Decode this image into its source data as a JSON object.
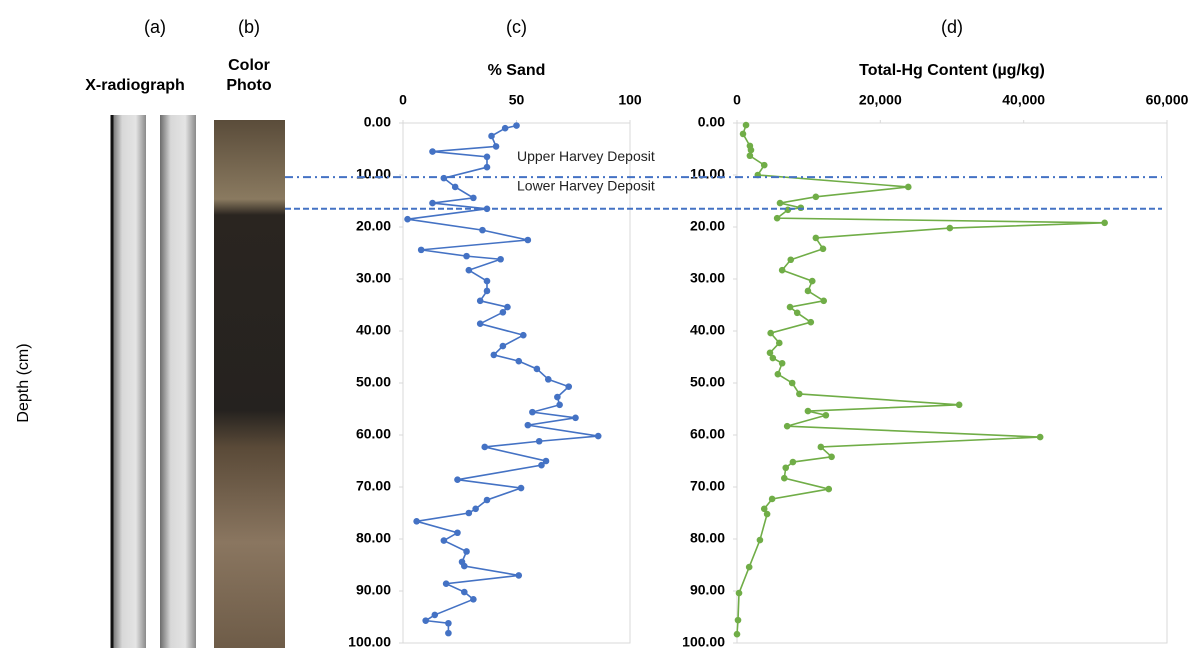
{
  "panels": [
    {
      "label": "(a)",
      "title": [
        "X-radiograph"
      ]
    },
    {
      "label": "(b)",
      "title": [
        "Color",
        "Photo"
      ]
    }
  ],
  "deposits": [
    {
      "label": "Upper Harvey Deposit",
      "depth": 10.4,
      "dash": "8 4 2 4"
    },
    {
      "label": "Lower Harvey Deposit",
      "depth": 16.5,
      "dash": "6 3"
    }
  ],
  "chart_data": [
    {
      "type": "line",
      "orientation": "horizontal",
      "panel_label": "(c)",
      "title": "% Sand",
      "ylabel": "Depth (cm)",
      "color": "#4472c4",
      "x": [
        0.5,
        1,
        2.5,
        4.5,
        5.5,
        6.5,
        8.5,
        10.6,
        12.3,
        14.4,
        15.4,
        16.5,
        18.5,
        20.6,
        22.5,
        24.4,
        25.6,
        26.2,
        28.3,
        30.4,
        32.3,
        34.2,
        35.4,
        36.4,
        38.6,
        40.8,
        42.9,
        44.6,
        45.8,
        47.3,
        49.3,
        50.7,
        52.7,
        54.2,
        55.6,
        56.7,
        58.1,
        60.2,
        61.2,
        62.3,
        65.0,
        65.8,
        68.6,
        70.2,
        72.5,
        74.2,
        75.0,
        76.6,
        78.8,
        80.3,
        82.4,
        84.4,
        85.2,
        87.0,
        88.6,
        90.2,
        91.6,
        94.6,
        95.7,
        96.2,
        98.1
      ],
      "values": [
        50,
        45,
        39,
        41,
        13,
        37,
        37,
        18,
        23,
        31,
        13,
        37,
        2,
        35,
        55,
        8,
        28,
        43,
        29,
        37,
        37,
        34,
        46,
        44,
        34,
        53,
        44,
        40,
        51,
        59,
        64,
        73,
        68,
        69,
        57,
        76,
        55,
        86,
        60,
        36,
        63,
        61,
        24,
        52,
        37,
        32,
        29,
        6,
        24,
        18,
        28,
        26,
        27,
        51,
        19,
        27,
        31,
        14,
        10,
        20,
        20
      ],
      "xlim": [
        0,
        100
      ],
      "xticks": [
        {
          "value": 0,
          "label": "0.00"
        },
        {
          "value": 10,
          "label": "10.00"
        },
        {
          "value": 20,
          "label": "20.00"
        },
        {
          "value": 30,
          "label": "30.00"
        },
        {
          "value": 40,
          "label": "40.00"
        },
        {
          "value": 50,
          "label": "50.00"
        },
        {
          "value": 60,
          "label": "60.00"
        },
        {
          "value": 70,
          "label": "70.00"
        },
        {
          "value": 80,
          "label": "80.00"
        },
        {
          "value": 90,
          "label": "90.00"
        },
        {
          "value": 100,
          "label": "100.00"
        }
      ],
      "ylim": [
        0,
        100
      ],
      "yticks": [
        0,
        50,
        100
      ]
    },
    {
      "type": "line",
      "orientation": "horizontal",
      "panel_label": "(d)",
      "title": "Total-Hg Content (µg/kg)",
      "color": "#70ad47",
      "x": [
        0.4,
        2.1,
        4.4,
        5.2,
        6.3,
        8.1,
        10,
        12.3,
        14.2,
        15.4,
        16.3,
        16.7,
        18.3,
        19.2,
        20.2,
        22.1,
        24.2,
        26.3,
        28.3,
        30.4,
        32.3,
        34.2,
        35.4,
        36.5,
        38.3,
        40.4,
        42.3,
        44.2,
        45.2,
        46.2,
        48.3,
        50,
        52.1,
        54.2,
        55.4,
        56.2,
        58.3,
        60.4,
        62.3,
        64.2,
        65.2,
        66.3,
        68.3,
        70.4,
        72.3,
        74.2,
        75.2,
        80.2,
        85.4,
        90.4,
        95.6,
        98.3
      ],
      "values": [
        1260,
        840,
        1800,
        1950,
        1800,
        3800,
        2900,
        23900,
        11000,
        6000,
        8900,
        7100,
        5600,
        51300,
        29700,
        11000,
        12000,
        7500,
        6300,
        10500,
        9900,
        12100,
        7400,
        8400,
        10300,
        4700,
        5900,
        4600,
        5000,
        6300,
        5700,
        7700,
        8700,
        31000,
        9900,
        12400,
        7000,
        42300,
        11700,
        13200,
        7800,
        6800,
        6600,
        12800,
        4900,
        3800,
        4200,
        3200,
        1700,
        280,
        140,
        0
      ],
      "xlim": [
        0,
        100
      ],
      "xticks": [
        {
          "value": 0,
          "label": "0.00"
        },
        {
          "value": 10,
          "label": "10.00"
        },
        {
          "value": 20,
          "label": "20.00"
        },
        {
          "value": 30,
          "label": "30.00"
        },
        {
          "value": 40,
          "label": "40.00"
        },
        {
          "value": 50,
          "label": "50.00"
        },
        {
          "value": 60,
          "label": "60.00"
        },
        {
          "value": 70,
          "label": "70.00"
        },
        {
          "value": 80,
          "label": "80.00"
        },
        {
          "value": 90,
          "label": "90.00"
        },
        {
          "value": 100,
          "label": "100.00"
        }
      ],
      "ylim": [
        0,
        60000
      ],
      "yticks": [
        0,
        {
          "value": 20000,
          "label": "20,000"
        },
        {
          "value": 40000,
          "label": "40,000"
        },
        {
          "value": 60000,
          "label": "60,000"
        }
      ]
    }
  ]
}
